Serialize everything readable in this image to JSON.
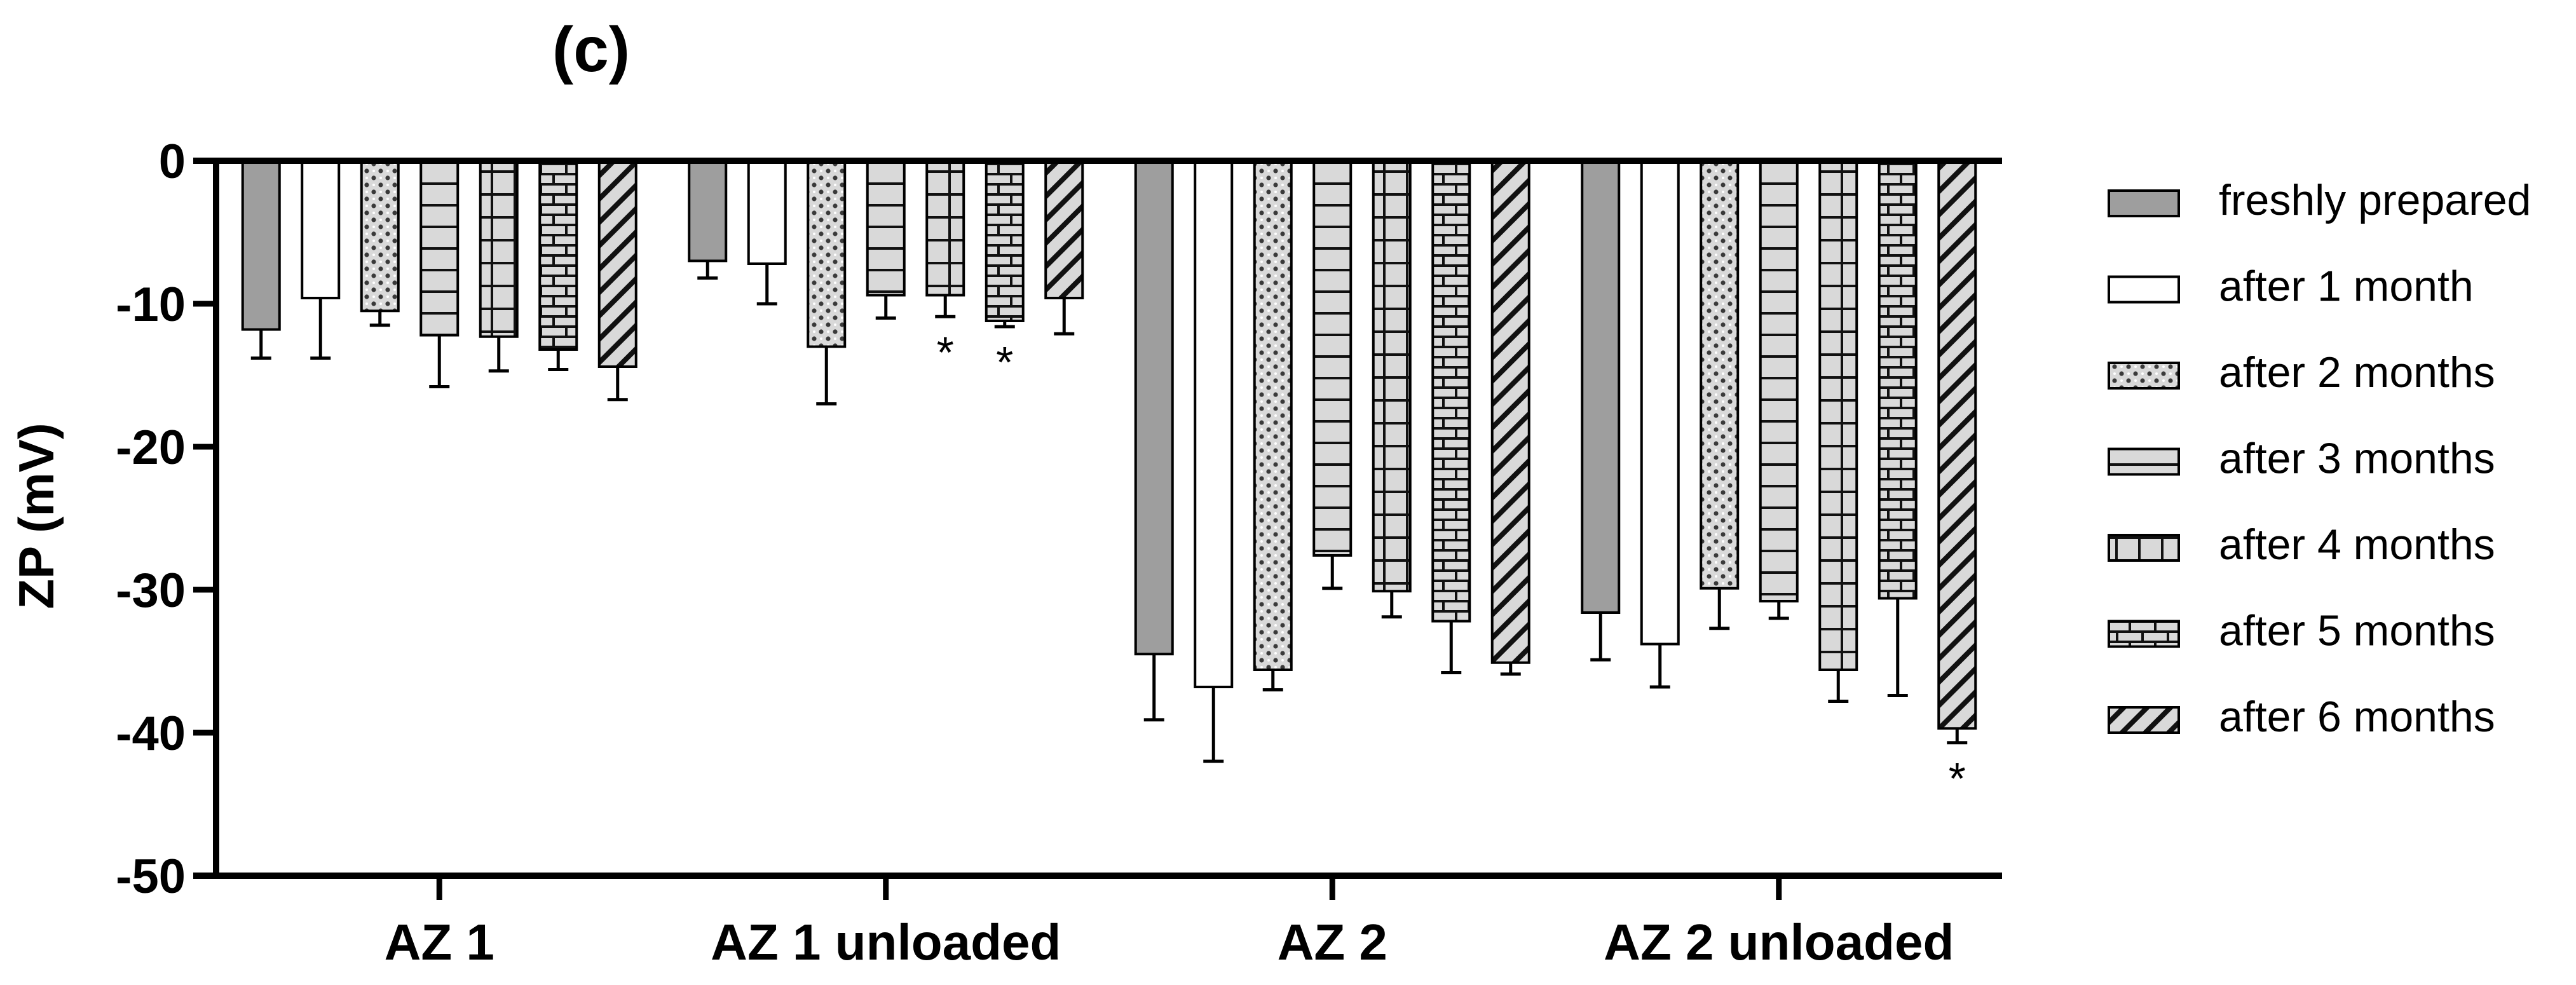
{
  "chart_data": {
    "type": "bar",
    "title": "(c)",
    "xlabel": "",
    "ylabel": "ZP (mV)",
    "ylim": [
      -50,
      0
    ],
    "yticks": [
      "0",
      "-10",
      "-20",
      "-30",
      "-40",
      "-50"
    ],
    "categories": [
      "AZ 1",
      "AZ 1 unloaded",
      "AZ 2",
      "AZ 2 unloaded"
    ],
    "series": [
      {
        "name": "freshly prepared",
        "pattern": "solid-gray",
        "values": [
          -11.8,
          -7.0,
          -34.5,
          -31.6
        ],
        "errors": [
          2.0,
          1.2,
          4.6,
          3.3
        ]
      },
      {
        "name": "after 1 month",
        "pattern": "white",
        "values": [
          -9.6,
          -7.2,
          -36.8,
          -33.8
        ],
        "errors": [
          4.2,
          2.8,
          5.2,
          3.0
        ]
      },
      {
        "name": "after 2 months",
        "pattern": "dots",
        "values": [
          -10.5,
          -13.0,
          -35.6,
          -29.9
        ],
        "errors": [
          1.0,
          4.0,
          1.4,
          2.8
        ]
      },
      {
        "name": "after 3 months",
        "pattern": "horizontal-lines",
        "values": [
          -12.2,
          -9.4,
          -27.6,
          -30.8
        ],
        "errors": [
          3.6,
          1.6,
          2.3,
          1.2
        ]
      },
      {
        "name": "after 4 months",
        "pattern": "grid",
        "values": [
          -12.3,
          -9.4,
          -30.1,
          -35.6
        ],
        "errors": [
          2.4,
          1.5,
          1.8,
          2.2
        ]
      },
      {
        "name": "after 5 months",
        "pattern": "bricks",
        "values": [
          -13.2,
          -11.2,
          -32.2,
          -30.6
        ],
        "errors": [
          1.4,
          0.4,
          3.6,
          6.8
        ]
      },
      {
        "name": "after 6 months",
        "pattern": "diagonal",
        "values": [
          -14.4,
          -9.6,
          -35.1,
          -39.7
        ],
        "errors": [
          2.3,
          2.5,
          0.8,
          1.0
        ]
      }
    ],
    "annotations": [
      {
        "text": "*",
        "category": "AZ 1 unloaded",
        "series": "after 4 months"
      },
      {
        "text": "*",
        "category": "AZ 1 unloaded",
        "series": "after 5 months"
      },
      {
        "text": "*",
        "category": "AZ 2 unloaded",
        "series": "after 6 months"
      }
    ],
    "legend_position": "right",
    "grid": false
  }
}
